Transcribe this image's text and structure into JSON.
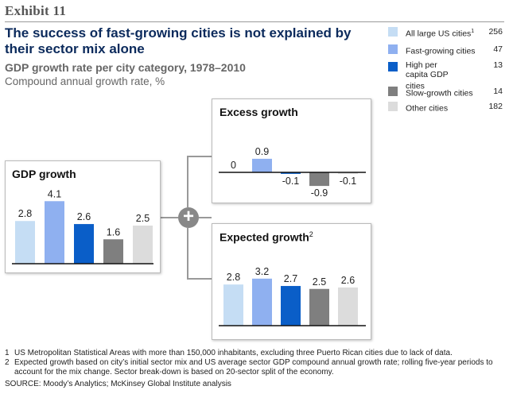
{
  "exhibit": "Exhibit 11",
  "title": "The success of fast-growing cities is not explained by their sector mix alone",
  "subtitle": "GDP growth rate per city category, 1978–2010",
  "subtitle2": "Compound annual growth rate, %",
  "colors": {
    "all_large": "#c5ddf4",
    "fast": "#8fb0f0",
    "high_pc": "#0a5ec8",
    "slow": "#7f7f7f",
    "other": "#dcdcdc",
    "axis": "#111111",
    "connector": "#999999"
  },
  "legend": [
    {
      "label": "All large US cities",
      "sup": "1",
      "count": "256",
      "color": "#c5ddf4"
    },
    {
      "label": "Fast-growing cities",
      "sup": "",
      "count": "47",
      "color": "#8fb0f0"
    },
    {
      "label": "High per capita GDP cities",
      "sup": "",
      "count": "13",
      "color": "#0a5ec8"
    },
    {
      "label": "Slow-growth cities",
      "sup": "",
      "count": "14",
      "color": "#7f7f7f"
    },
    {
      "label": "Other cities",
      "sup": "",
      "count": "182",
      "color": "#dcdcdc"
    }
  ],
  "plus_symbol": "+",
  "chart_data": [
    {
      "type": "bar",
      "title": "GDP growth",
      "categories": [
        "All large US cities",
        "Fast-growing cities",
        "High per capita GDP cities",
        "Slow-growth cities",
        "Other cities"
      ],
      "values": [
        2.8,
        4.1,
        2.6,
        1.6,
        2.5
      ],
      "labels": [
        "2.8",
        "4.1",
        "2.6",
        "1.6",
        "2.5"
      ],
      "ylim": [
        0,
        4.1
      ]
    },
    {
      "type": "bar",
      "title": "Excess growth",
      "categories": [
        "All large US cities",
        "Fast-growing cities",
        "High per capita GDP cities",
        "Slow-growth cities",
        "Other cities"
      ],
      "values": [
        0,
        0.9,
        -0.1,
        -0.9,
        -0.1
      ],
      "labels": [
        "0",
        "0.9",
        "-0.1",
        "-0.9",
        "-0.1"
      ],
      "ylim": [
        -0.9,
        0.9
      ]
    },
    {
      "type": "bar",
      "title": "Expected growth",
      "title_sup": "2",
      "categories": [
        "All large US cities",
        "Fast-growing cities",
        "High per capita GDP cities",
        "Slow-growth cities",
        "Other cities"
      ],
      "values": [
        2.8,
        3.2,
        2.7,
        2.5,
        2.6
      ],
      "labels": [
        "2.8",
        "3.2",
        "2.7",
        "2.5",
        "2.6"
      ],
      "ylim": [
        0,
        3.2
      ]
    }
  ],
  "footnotes": [
    {
      "num": "1",
      "text": "US Metropolitan Statistical Areas with more than 150,000 inhabitants, excluding three Puerto Rican cities due to lack of data."
    },
    {
      "num": "2",
      "text": "Expected growth based on city’s initial sector mix and US average sector GDP compound annual growth rate; rolling five-year periods to account for the mix change. Sector break-down is based on 20-sector split of the economy."
    }
  ],
  "source": "SOURCE: Moody’s Analytics; McKinsey Global Institute analysis"
}
